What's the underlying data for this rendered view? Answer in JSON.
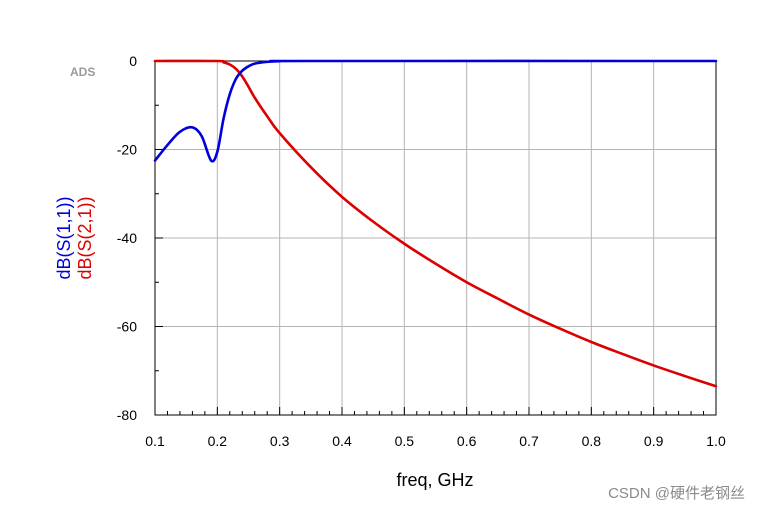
{
  "chart_data": {
    "type": "line",
    "title": "",
    "xlabel": "freq, GHz",
    "xlim": [
      0.1,
      1.0
    ],
    "ylim": [
      -80,
      0
    ],
    "x_ticks": [
      0.1,
      0.2,
      0.3,
      0.4,
      0.5,
      0.6,
      0.7,
      0.8,
      0.9,
      1.0
    ],
    "x_tick_labels": [
      "0.1",
      "0.2",
      "0.3",
      "0.4",
      "0.5",
      "0.6",
      "0.7",
      "0.8",
      "0.9",
      "1.0"
    ],
    "y_ticks": [
      0,
      -20,
      -40,
      -60,
      -80
    ],
    "y_tick_labels": [
      "0",
      "-20",
      "-40",
      "-60",
      "-80"
    ],
    "grid": true,
    "series": [
      {
        "name": "dB(S(1,1))",
        "color": "#0000dd",
        "points": [
          [
            0.1,
            -22.5
          ],
          [
            0.12,
            -19.0
          ],
          [
            0.14,
            -16.0
          ],
          [
            0.16,
            -15.0
          ],
          [
            0.175,
            -17.0
          ],
          [
            0.19,
            -22.5
          ],
          [
            0.2,
            -20.5
          ],
          [
            0.21,
            -13.0
          ],
          [
            0.22,
            -7.5
          ],
          [
            0.23,
            -4.0
          ],
          [
            0.24,
            -2.2
          ],
          [
            0.25,
            -1.2
          ],
          [
            0.26,
            -0.6
          ],
          [
            0.28,
            -0.2
          ],
          [
            0.3,
            -0.05
          ],
          [
            0.35,
            0.0
          ],
          [
            1.0,
            0.0
          ]
        ]
      },
      {
        "name": "dB(S(2,1))",
        "color": "#dd0000",
        "points": [
          [
            0.1,
            0.0
          ],
          [
            0.2,
            0.0
          ],
          [
            0.21,
            -0.3
          ],
          [
            0.22,
            -0.8
          ],
          [
            0.23,
            -1.8
          ],
          [
            0.24,
            -3.5
          ],
          [
            0.25,
            -5.8
          ],
          [
            0.26,
            -8.3
          ],
          [
            0.28,
            -12.5
          ],
          [
            0.3,
            -16.3
          ],
          [
            0.35,
            -24.0
          ],
          [
            0.4,
            -30.7
          ],
          [
            0.45,
            -36.3
          ],
          [
            0.5,
            -41.3
          ],
          [
            0.55,
            -45.8
          ],
          [
            0.6,
            -50.0
          ],
          [
            0.65,
            -53.7
          ],
          [
            0.7,
            -57.3
          ],
          [
            0.75,
            -60.5
          ],
          [
            0.8,
            -63.5
          ],
          [
            0.85,
            -66.2
          ],
          [
            0.9,
            -68.8
          ],
          [
            0.95,
            -71.2
          ],
          [
            1.0,
            -73.5
          ]
        ]
      }
    ]
  },
  "logo_text": "ADS",
  "watermark_text": "CSDN @硬件老钢丝"
}
